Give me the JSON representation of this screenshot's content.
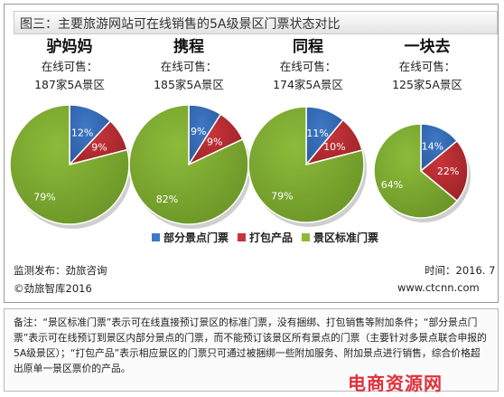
{
  "title": "图三：主要旅游网站可在线销售的5A级景区门票状态对比",
  "chart_data": {
    "type": "pie",
    "charts": [
      {
        "name": "驴妈妈",
        "label": "在线可售：",
        "total": "187家5A景区",
        "slices": [
          {
            "category": "部分景点门票",
            "value": 12,
            "label": "12%"
          },
          {
            "category": "打包产品",
            "value": 9,
            "label": "9%"
          },
          {
            "category": "景区标准门票",
            "value": 79,
            "label": "79%"
          }
        ]
      },
      {
        "name": "携程",
        "label": "在线可售：",
        "total": "185家5A景区",
        "slices": [
          {
            "category": "部分景点门票",
            "value": 9,
            "label": "9%"
          },
          {
            "category": "打包产品",
            "value": 9,
            "label": "9%"
          },
          {
            "category": "景区标准门票",
            "value": 82,
            "label": "82%"
          }
        ]
      },
      {
        "name": "同程",
        "label": "在线可售：",
        "total": "174家5A景区",
        "slices": [
          {
            "category": "部分景点门票",
            "value": 11,
            "label": "11%"
          },
          {
            "category": "打包产品",
            "value": 10,
            "label": "10%"
          },
          {
            "category": "景区标准门票",
            "value": 79,
            "label": "79%"
          }
        ]
      },
      {
        "name": "一块去",
        "label": "在线可售：",
        "total": "125家5A景区",
        "slices": [
          {
            "category": "部分景点门票",
            "value": 14,
            "label": "14%"
          },
          {
            "category": "打包产品",
            "value": 22,
            "label": "22%"
          },
          {
            "category": "景区标准门票",
            "value": 64,
            "label": "64%"
          }
        ]
      }
    ],
    "legend": [
      {
        "name": "部分景点门票",
        "color": "#3f78c5"
      },
      {
        "name": "打包产品",
        "color": "#c8343a"
      },
      {
        "name": "景区标准门票",
        "color": "#8cbb3a"
      }
    ],
    "legend_position": "bottom"
  },
  "footer": {
    "source": "监测发布：劲旅咨询",
    "copyright": "©劲旅智库2016",
    "date": "时间：2016. 7",
    "site": "www.ctcnn.com"
  },
  "note": "备注：“景区标准门票”表示可在线直接预订景区的标准门票，没有捆绑、打包销售等附加条件；“部分景点门票”表示可在线预订到景区内部分景点的门票，而不能预订该景区所有景点的门票（主要针对多景点联合申报的5A级景区）；“打包产品”表示相应景区的门票只可通过被捆绑一些附加服务、附加景点进行销售，综合价格超出原单一景区票价的产品。",
  "watermark": "电商资源网"
}
